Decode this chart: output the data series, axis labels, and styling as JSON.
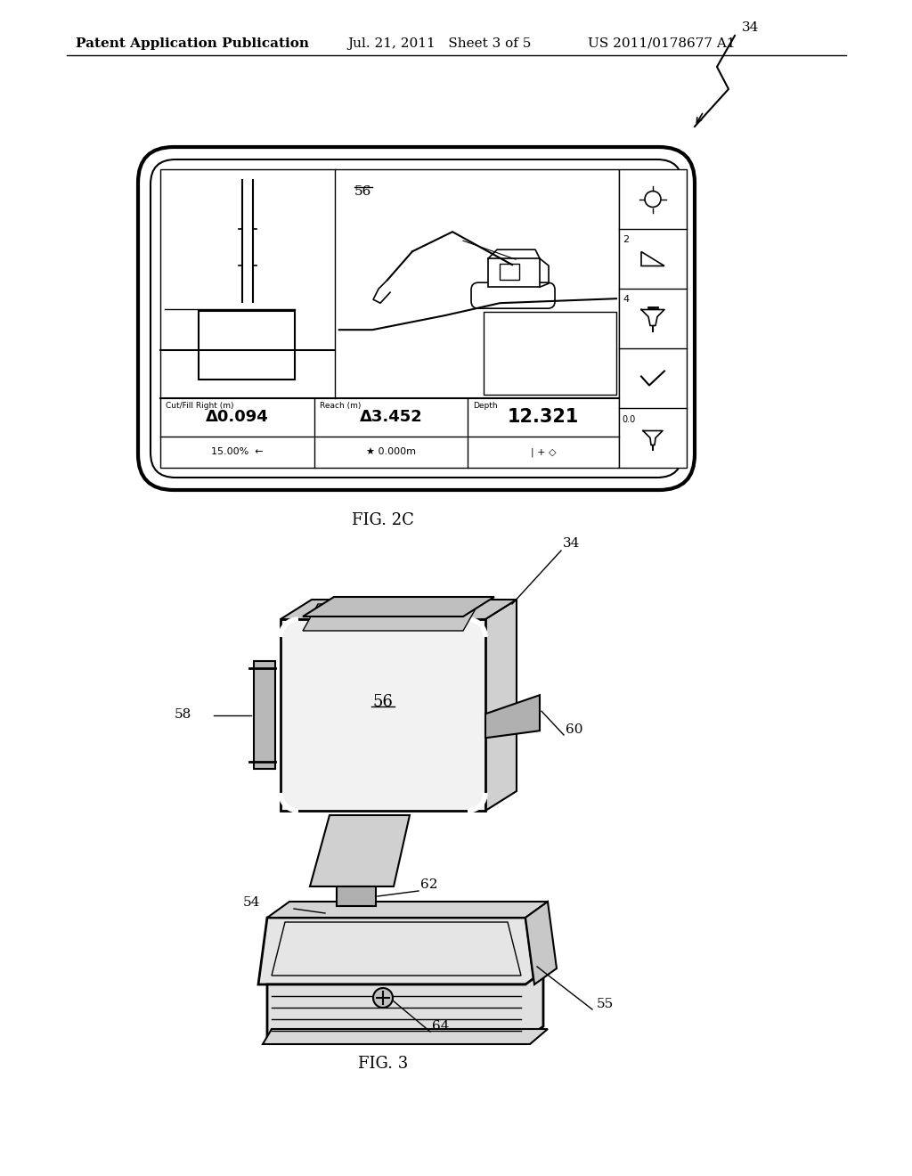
{
  "bg_color": "#ffffff",
  "line_color": "#000000",
  "header_text": "Patent Application Publication",
  "header_date": "Jul. 21, 2011   Sheet 3 of 5",
  "header_patent": "US 2011/0178677 A1",
  "fig2c_label": "FIG. 2C",
  "fig3_label": "FIG. 3",
  "label_34_fig2c": "34",
  "label_56": "56",
  "label_56_fig3": "56",
  "label_34_fig3": "34",
  "label_58": "58",
  "label_60": "60",
  "label_62": "62",
  "label_54": "54",
  "label_64": "64",
  "label_55": "55",
  "screen_col1_label": "Cut/Fill Right (m)",
  "screen_col2_label": "Reach (m)",
  "screen_col3_label": "Depth",
  "screen_col1_value": "Δ0.094",
  "screen_col2_value": "Δ3.452",
  "screen_col3_value": "12.321",
  "screen_row2_col1": "15.00%  ←",
  "screen_row2_col2": "★ 0.000m",
  "screen_row2_col3": "| + ◇",
  "sidebar_num1": "2",
  "sidebar_num2": "4",
  "sidebar_num3": "0.0"
}
